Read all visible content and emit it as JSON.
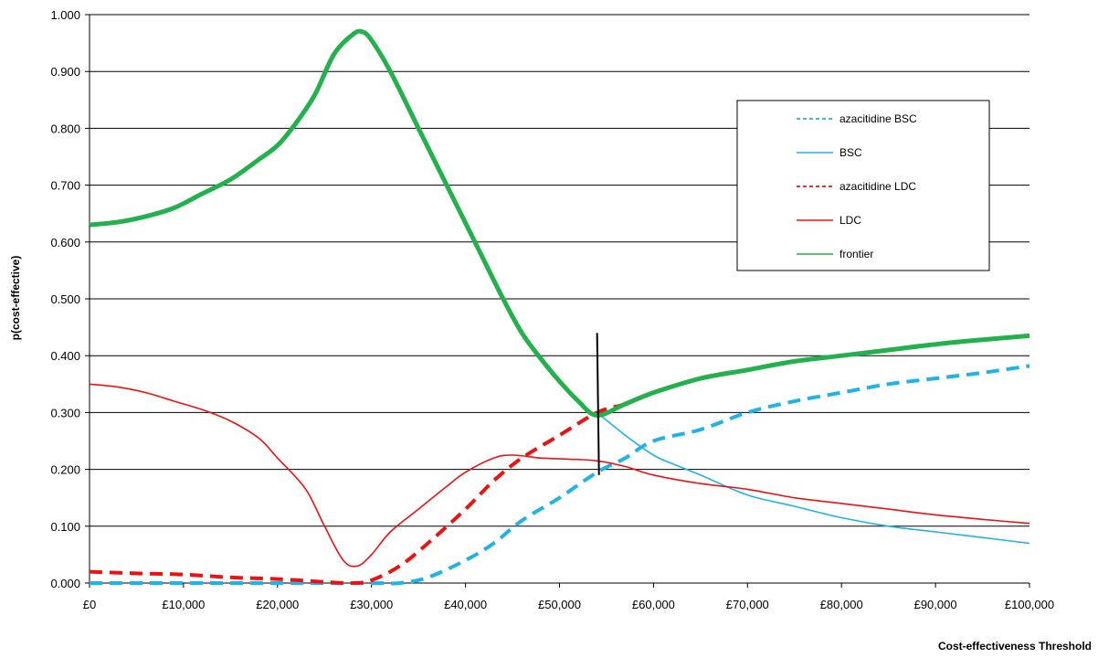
{
  "chart_data": {
    "type": "line",
    "title": "",
    "xlabel": "Cost-effectiveness Threshold",
    "ylabel": "p(cost-effective)",
    "xlim": [
      0,
      100000
    ],
    "ylim": [
      0,
      1
    ],
    "grid": "horizontal",
    "legend_position": "top-right",
    "x_tick_labels": [
      "£0",
      "£10,000",
      "£20,000",
      "£30,000",
      "£40,000",
      "£50,000",
      "£60,000",
      "£70,000",
      "£80,000",
      "£90,000",
      "£100,000"
    ],
    "x_ticks": [
      0,
      10000,
      20000,
      30000,
      40000,
      50000,
      60000,
      70000,
      80000,
      90000,
      100000
    ],
    "y_tick_labels": [
      "0.000",
      "0.100",
      "0.200",
      "0.300",
      "0.400",
      "0.500",
      "0.600",
      "0.700",
      "0.800",
      "0.900",
      "1.000"
    ],
    "y_ticks": [
      0,
      0.1,
      0.2,
      0.3,
      0.4,
      0.5,
      0.6,
      0.7,
      0.8,
      0.9,
      1.0
    ],
    "series": [
      {
        "name": "azacitidine BSC",
        "color": "#1fb3e8",
        "dash": "dashed",
        "width": "thick",
        "points": [
          [
            0,
            0
          ],
          [
            10000,
            0
          ],
          [
            20000,
            0
          ],
          [
            30000,
            0
          ],
          [
            33000,
            0
          ],
          [
            36000,
            0.01
          ],
          [
            40000,
            0.04
          ],
          [
            43000,
            0.07
          ],
          [
            46000,
            0.11
          ],
          [
            50000,
            0.15
          ],
          [
            54000,
            0.195
          ],
          [
            57000,
            0.22
          ],
          [
            60000,
            0.25
          ],
          [
            65000,
            0.27
          ],
          [
            70000,
            0.3
          ],
          [
            75000,
            0.32
          ],
          [
            80000,
            0.335
          ],
          [
            85000,
            0.35
          ],
          [
            90000,
            0.36
          ],
          [
            95000,
            0.37
          ],
          [
            100000,
            0.382
          ]
        ]
      },
      {
        "name": "BSC",
        "color": "#1fb3e8",
        "dash": "solid",
        "width": "thin",
        "points": [
          [
            54000,
            0.3
          ],
          [
            57000,
            0.26
          ],
          [
            60000,
            0.225
          ],
          [
            62000,
            0.21
          ],
          [
            65000,
            0.19
          ],
          [
            70000,
            0.155
          ],
          [
            75000,
            0.135
          ],
          [
            80000,
            0.115
          ],
          [
            85000,
            0.1
          ],
          [
            90000,
            0.09
          ],
          [
            95000,
            0.08
          ],
          [
            100000,
            0.07
          ]
        ]
      },
      {
        "name": "azacitidine LDC",
        "color": "#ee1111",
        "dash": "dashed",
        "width": "thick",
        "points": [
          [
            0,
            0.02
          ],
          [
            5000,
            0.017
          ],
          [
            10000,
            0.015
          ],
          [
            15000,
            0.01
          ],
          [
            20000,
            0.007
          ],
          [
            25000,
            0.002
          ],
          [
            28000,
            0
          ],
          [
            30000,
            0.005
          ],
          [
            33000,
            0.03
          ],
          [
            36000,
            0.07
          ],
          [
            40000,
            0.13
          ],
          [
            43000,
            0.18
          ],
          [
            46000,
            0.22
          ],
          [
            50000,
            0.26
          ],
          [
            54000,
            0.3
          ],
          [
            57000,
            0.315
          ],
          [
            60000,
            0.335
          ],
          [
            65000,
            0.36
          ],
          [
            70000,
            0.375
          ],
          [
            75000,
            0.39
          ],
          [
            80000,
            0.4
          ],
          [
            85000,
            0.41
          ],
          [
            90000,
            0.42
          ],
          [
            95000,
            0.428
          ],
          [
            100000,
            0.435
          ]
        ]
      },
      {
        "name": "LDC",
        "color": "#ee1111",
        "dash": "solid",
        "width": "thin",
        "points": [
          [
            0,
            0.35
          ],
          [
            3000,
            0.345
          ],
          [
            6000,
            0.335
          ],
          [
            9000,
            0.32
          ],
          [
            12000,
            0.305
          ],
          [
            15000,
            0.285
          ],
          [
            18000,
            0.255
          ],
          [
            20000,
            0.22
          ],
          [
            23000,
            0.165
          ],
          [
            25000,
            0.1
          ],
          [
            27000,
            0.04
          ],
          [
            28500,
            0.03
          ],
          [
            30000,
            0.05
          ],
          [
            32000,
            0.09
          ],
          [
            35000,
            0.13
          ],
          [
            38000,
            0.17
          ],
          [
            40000,
            0.195
          ],
          [
            43000,
            0.22
          ],
          [
            45000,
            0.225
          ],
          [
            48000,
            0.22
          ],
          [
            51000,
            0.218
          ],
          [
            54000,
            0.215
          ],
          [
            57000,
            0.205
          ],
          [
            60000,
            0.19
          ],
          [
            65000,
            0.175
          ],
          [
            70000,
            0.165
          ],
          [
            75000,
            0.15
          ],
          [
            80000,
            0.14
          ],
          [
            85000,
            0.13
          ],
          [
            90000,
            0.12
          ],
          [
            95000,
            0.112
          ],
          [
            100000,
            0.105
          ]
        ]
      },
      {
        "name": "frontier",
        "color": "#22b14c",
        "dash": "solid",
        "width": "thickest",
        "points": [
          [
            0,
            0.63
          ],
          [
            3000,
            0.635
          ],
          [
            6000,
            0.645
          ],
          [
            9000,
            0.66
          ],
          [
            12000,
            0.685
          ],
          [
            15000,
            0.71
          ],
          [
            18000,
            0.745
          ],
          [
            20000,
            0.77
          ],
          [
            22000,
            0.81
          ],
          [
            24000,
            0.86
          ],
          [
            26000,
            0.93
          ],
          [
            28000,
            0.965
          ],
          [
            29000,
            0.97
          ],
          [
            30000,
            0.955
          ],
          [
            32000,
            0.9
          ],
          [
            35000,
            0.8
          ],
          [
            38000,
            0.7
          ],
          [
            41000,
            0.6
          ],
          [
            44000,
            0.5
          ],
          [
            46000,
            0.44
          ],
          [
            48000,
            0.395
          ],
          [
            50000,
            0.355
          ],
          [
            52000,
            0.32
          ],
          [
            54000,
            0.295
          ],
          [
            57000,
            0.315
          ],
          [
            60000,
            0.335
          ],
          [
            65000,
            0.36
          ],
          [
            70000,
            0.375
          ],
          [
            75000,
            0.39
          ],
          [
            80000,
            0.4
          ],
          [
            85000,
            0.41
          ],
          [
            90000,
            0.42
          ],
          [
            95000,
            0.428
          ],
          [
            100000,
            0.435
          ]
        ]
      }
    ],
    "annotations": [
      {
        "type": "vertical-marker",
        "x1": 54000,
        "y1": 0.44,
        "x2": 54200,
        "y2": 0.19,
        "color": "#000000"
      }
    ]
  }
}
